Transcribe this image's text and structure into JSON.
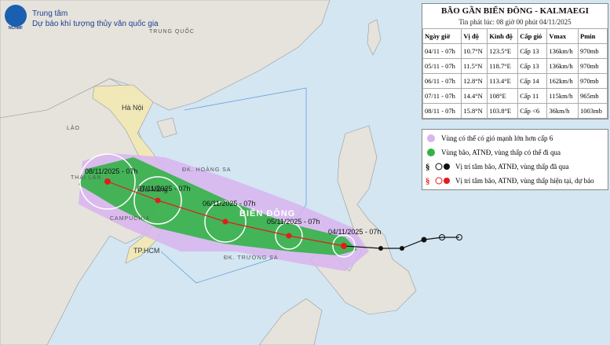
{
  "header": {
    "logo": "NCHMF",
    "org_line1": "Trung tâm",
    "org_line2": "Dự báo khí tượng thủy văn quốc gia"
  },
  "panel": {
    "title": "BÃO GẦN BIỂN ĐÔNG - KALMAEGI",
    "issued": "Tin phát lúc: 08 giờ 00 phút 04/11/2025",
    "table": {
      "columns": [
        "Ngày giờ",
        "Vị độ",
        "Kinh độ",
        "Cấp gió",
        "Vmax",
        "Pmin"
      ],
      "rows": [
        [
          "04/11 - 07h",
          "10.7°N",
          "123.5°E",
          "Cấp 13",
          "136km/h",
          "970mb"
        ],
        [
          "05/11 - 07h",
          "11.5°N",
          "118.7°E",
          "Cấp 13",
          "136km/h",
          "970mb"
        ],
        [
          "06/11 - 07h",
          "12.8°N",
          "113.4°E",
          "Cấp 14",
          "162km/h",
          "970mb"
        ],
        [
          "07/11 - 07h",
          "14.4°N",
          "108°E",
          "Cấp 11",
          "115km/h",
          "965mb"
        ],
        [
          "08/11 - 07h",
          "15.8°N",
          "103.8°E",
          "Cấp <6",
          "36km/h",
          "1003mb"
        ]
      ]
    }
  },
  "legend": [
    "Vùng có thể có gió mạnh lớn hơn cấp 6",
    "Vùng bão, ATNĐ, vùng thấp có thể đi qua",
    "Vị trí tâm bão, ATNĐ, vùng thấp đã qua",
    "Vị trí tâm bão, ATNĐ, vùng thấp hiện tại, dự báo"
  ],
  "map_labels": {
    "china": "TRUNG QUỐC",
    "hanoi": "Hà Nội",
    "laos": "LÀO",
    "thailand": "THÁI LAN",
    "cambodia": "CAMPUCHIA",
    "danang": "Đà Nẵng",
    "hcm": "TP.HCM",
    "paracel": "ĐK. HOÀNG SA",
    "spratly": "ĐK. TRƯỜNG SA",
    "sea": "BIỂN ĐÔNG"
  },
  "forecast_labels": [
    "04/11/2025 - 07h",
    "05/11/2025 - 07h",
    "06/11/2025 - 07h",
    "07/11/2025 - 07h",
    "08/11/2025 - 07h"
  ]
}
